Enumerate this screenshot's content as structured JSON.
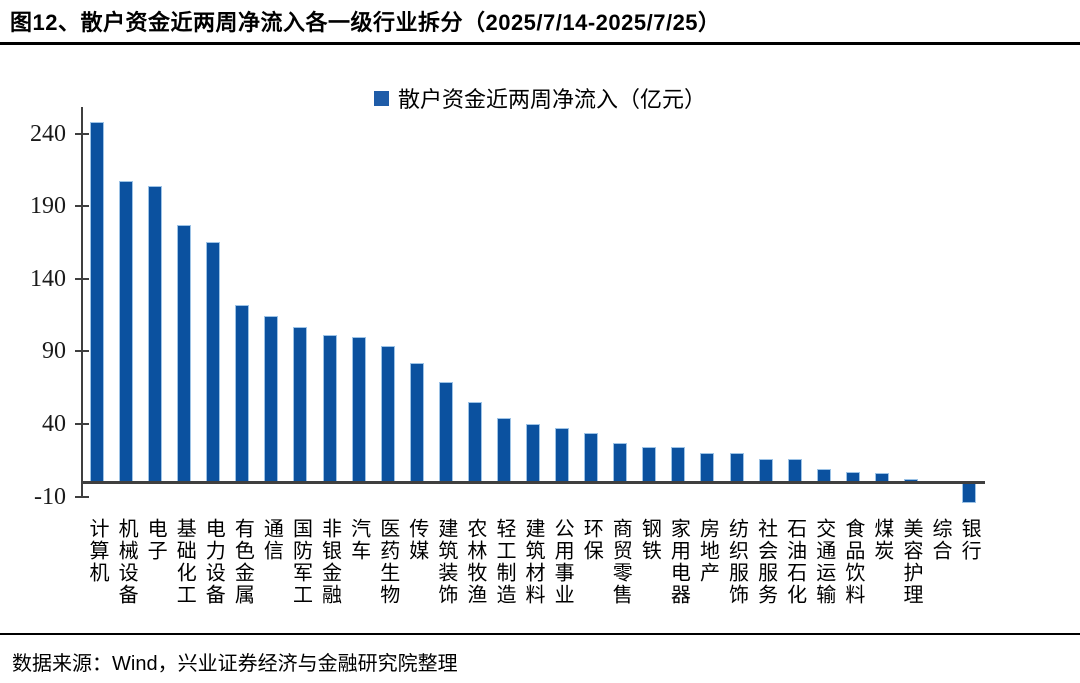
{
  "figure": {
    "title": "图12、散户资金近两周净流入各一级行业拆分（2025/7/14-2025/7/25）",
    "source_note": "数据来源：Wind，兴业证券经济与金融研究院整理"
  },
  "colors": {
    "bar_fill": "#0B519F",
    "bar_border": "#9DC3E6",
    "legend_swatch": "#1F5CA8",
    "axis": "#3F3F3F",
    "rule": "#000000"
  },
  "chart_data": {
    "type": "bar",
    "legend": "散户资金近两周净流入（亿元）",
    "legend_position": "top-center",
    "grid": false,
    "unit": "亿元",
    "ylim": [
      -10,
      255
    ],
    "yticks": [
      240,
      190,
      140,
      90,
      40,
      -10
    ],
    "categories": [
      "计算机",
      "机械设备",
      "电子",
      "基础化工",
      "电力设备",
      "有色金属",
      "通信",
      "国防军工",
      "非银金融",
      "汽车",
      "医药生物",
      "传媒",
      "建筑装饰",
      "农林牧渔",
      "轻工制造",
      "建筑材料",
      "公用事业",
      "环保",
      "商贸零售",
      "钢铁",
      "家用电器",
      "房地产",
      "纺织服饰",
      "社会服务",
      "石油石化",
      "交通运输",
      "食品饮料",
      "煤炭",
      "美容护理",
      "综合",
      "银行"
    ],
    "values": [
      248,
      207,
      204,
      177,
      165,
      122,
      114,
      107,
      101,
      100,
      94,
      82,
      69,
      55,
      44,
      40,
      37,
      34,
      27,
      24,
      24,
      20,
      20,
      16,
      16,
      9,
      7,
      6,
      2,
      1,
      -13
    ]
  }
}
